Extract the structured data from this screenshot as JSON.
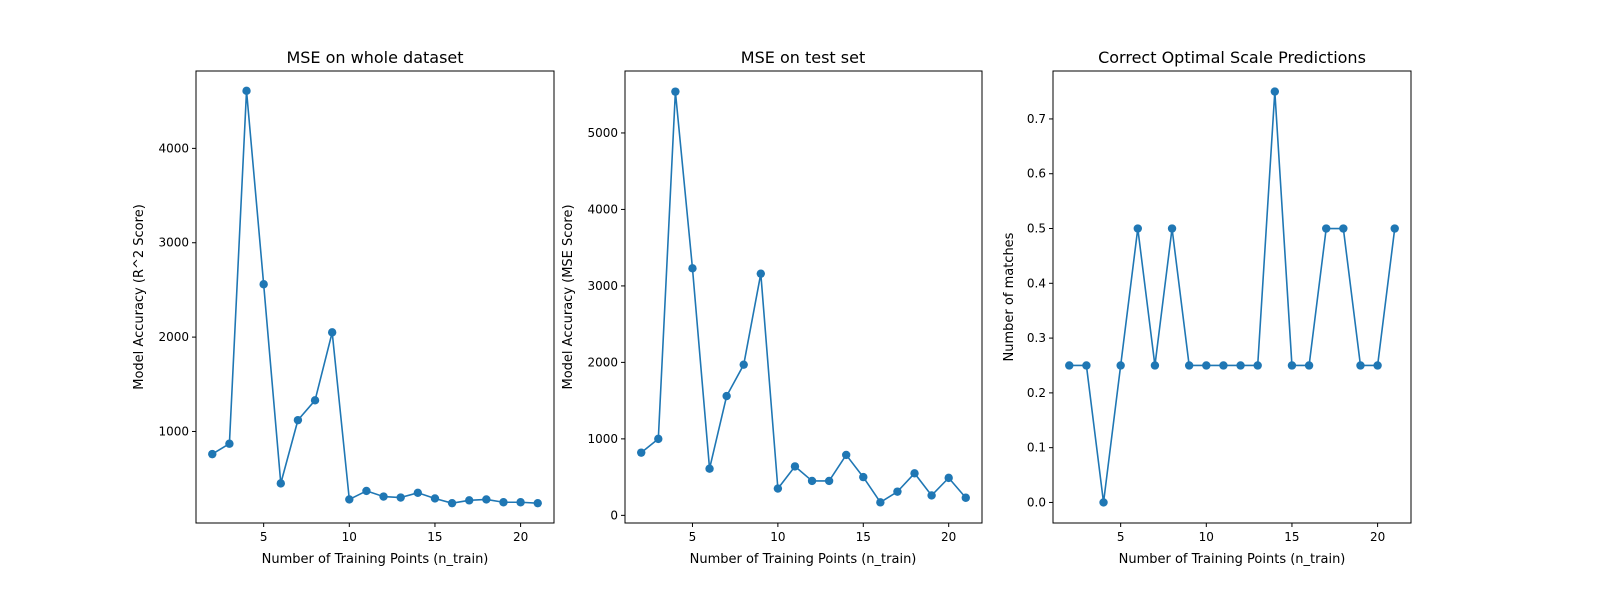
{
  "chart_data": [
    {
      "type": "line",
      "title": "MSE on whole dataset",
      "xlabel": "Number of Training Points (n_train)",
      "ylabel": "Model Accuracy (R^2 Score)",
      "xlim": [
        1.05,
        21.95
      ],
      "ylim": [
        30,
        4820
      ],
      "xticks": [
        5,
        10,
        15,
        20
      ],
      "yticks": [
        1000,
        2000,
        3000,
        4000
      ],
      "grid": false,
      "color": "#1f77b4",
      "series": [
        {
          "x": [
            2,
            3,
            4,
            5,
            6,
            7,
            8,
            9,
            10,
            11,
            12,
            13,
            14,
            15,
            16,
            17,
            18,
            19,
            20,
            21
          ],
          "values": [
            760,
            870,
            4610,
            2560,
            450,
            1120,
            1330,
            2050,
            280,
            370,
            310,
            300,
            350,
            290,
            240,
            270,
            280,
            250,
            250,
            240
          ]
        }
      ]
    },
    {
      "type": "line",
      "title": "MSE on test set",
      "xlabel": "Number of Training Points (n_train)",
      "ylabel": "Model Accuracy (MSE Score)",
      "xlim": [
        1.05,
        21.95
      ],
      "ylim": [
        -100,
        5810
      ],
      "xticks": [
        5,
        10,
        15,
        20
      ],
      "yticks": [
        0,
        1000,
        2000,
        3000,
        4000,
        5000
      ],
      "grid": false,
      "color": "#1f77b4",
      "series": [
        {
          "x": [
            2,
            3,
            4,
            5,
            6,
            7,
            8,
            9,
            10,
            11,
            12,
            13,
            14,
            15,
            16,
            17,
            18,
            19,
            20,
            21
          ],
          "values": [
            820,
            1000,
            5540,
            3230,
            610,
            1560,
            1970,
            3160,
            350,
            640,
            450,
            450,
            790,
            500,
            170,
            310,
            550,
            260,
            490,
            230
          ]
        }
      ]
    },
    {
      "type": "line",
      "title": "Correct Optimal Scale Predictions",
      "xlabel": "Number of Training Points (n_train)",
      "ylabel": "Number of matches",
      "xlim": [
        1.05,
        21.95
      ],
      "ylim": [
        -0.0375,
        0.7875
      ],
      "xticks": [
        5,
        10,
        15,
        20
      ],
      "yticks": [
        0.0,
        0.1,
        0.2,
        0.3,
        0.4,
        0.5,
        0.6,
        0.7
      ],
      "ytick_labels": [
        "0.0",
        "0.1",
        "0.2",
        "0.3",
        "0.4",
        "0.5",
        "0.6",
        "0.7"
      ],
      "grid": false,
      "color": "#1f77b4",
      "series": [
        {
          "x": [
            2,
            3,
            4,
            5,
            6,
            7,
            8,
            9,
            10,
            11,
            12,
            13,
            14,
            15,
            16,
            17,
            18,
            19,
            20,
            21
          ],
          "values": [
            0.25,
            0.25,
            0.0,
            0.25,
            0.5,
            0.25,
            0.5,
            0.25,
            0.25,
            0.25,
            0.25,
            0.25,
            0.75,
            0.25,
            0.25,
            0.5,
            0.5,
            0.25,
            0.25,
            0.5
          ]
        }
      ]
    }
  ]
}
